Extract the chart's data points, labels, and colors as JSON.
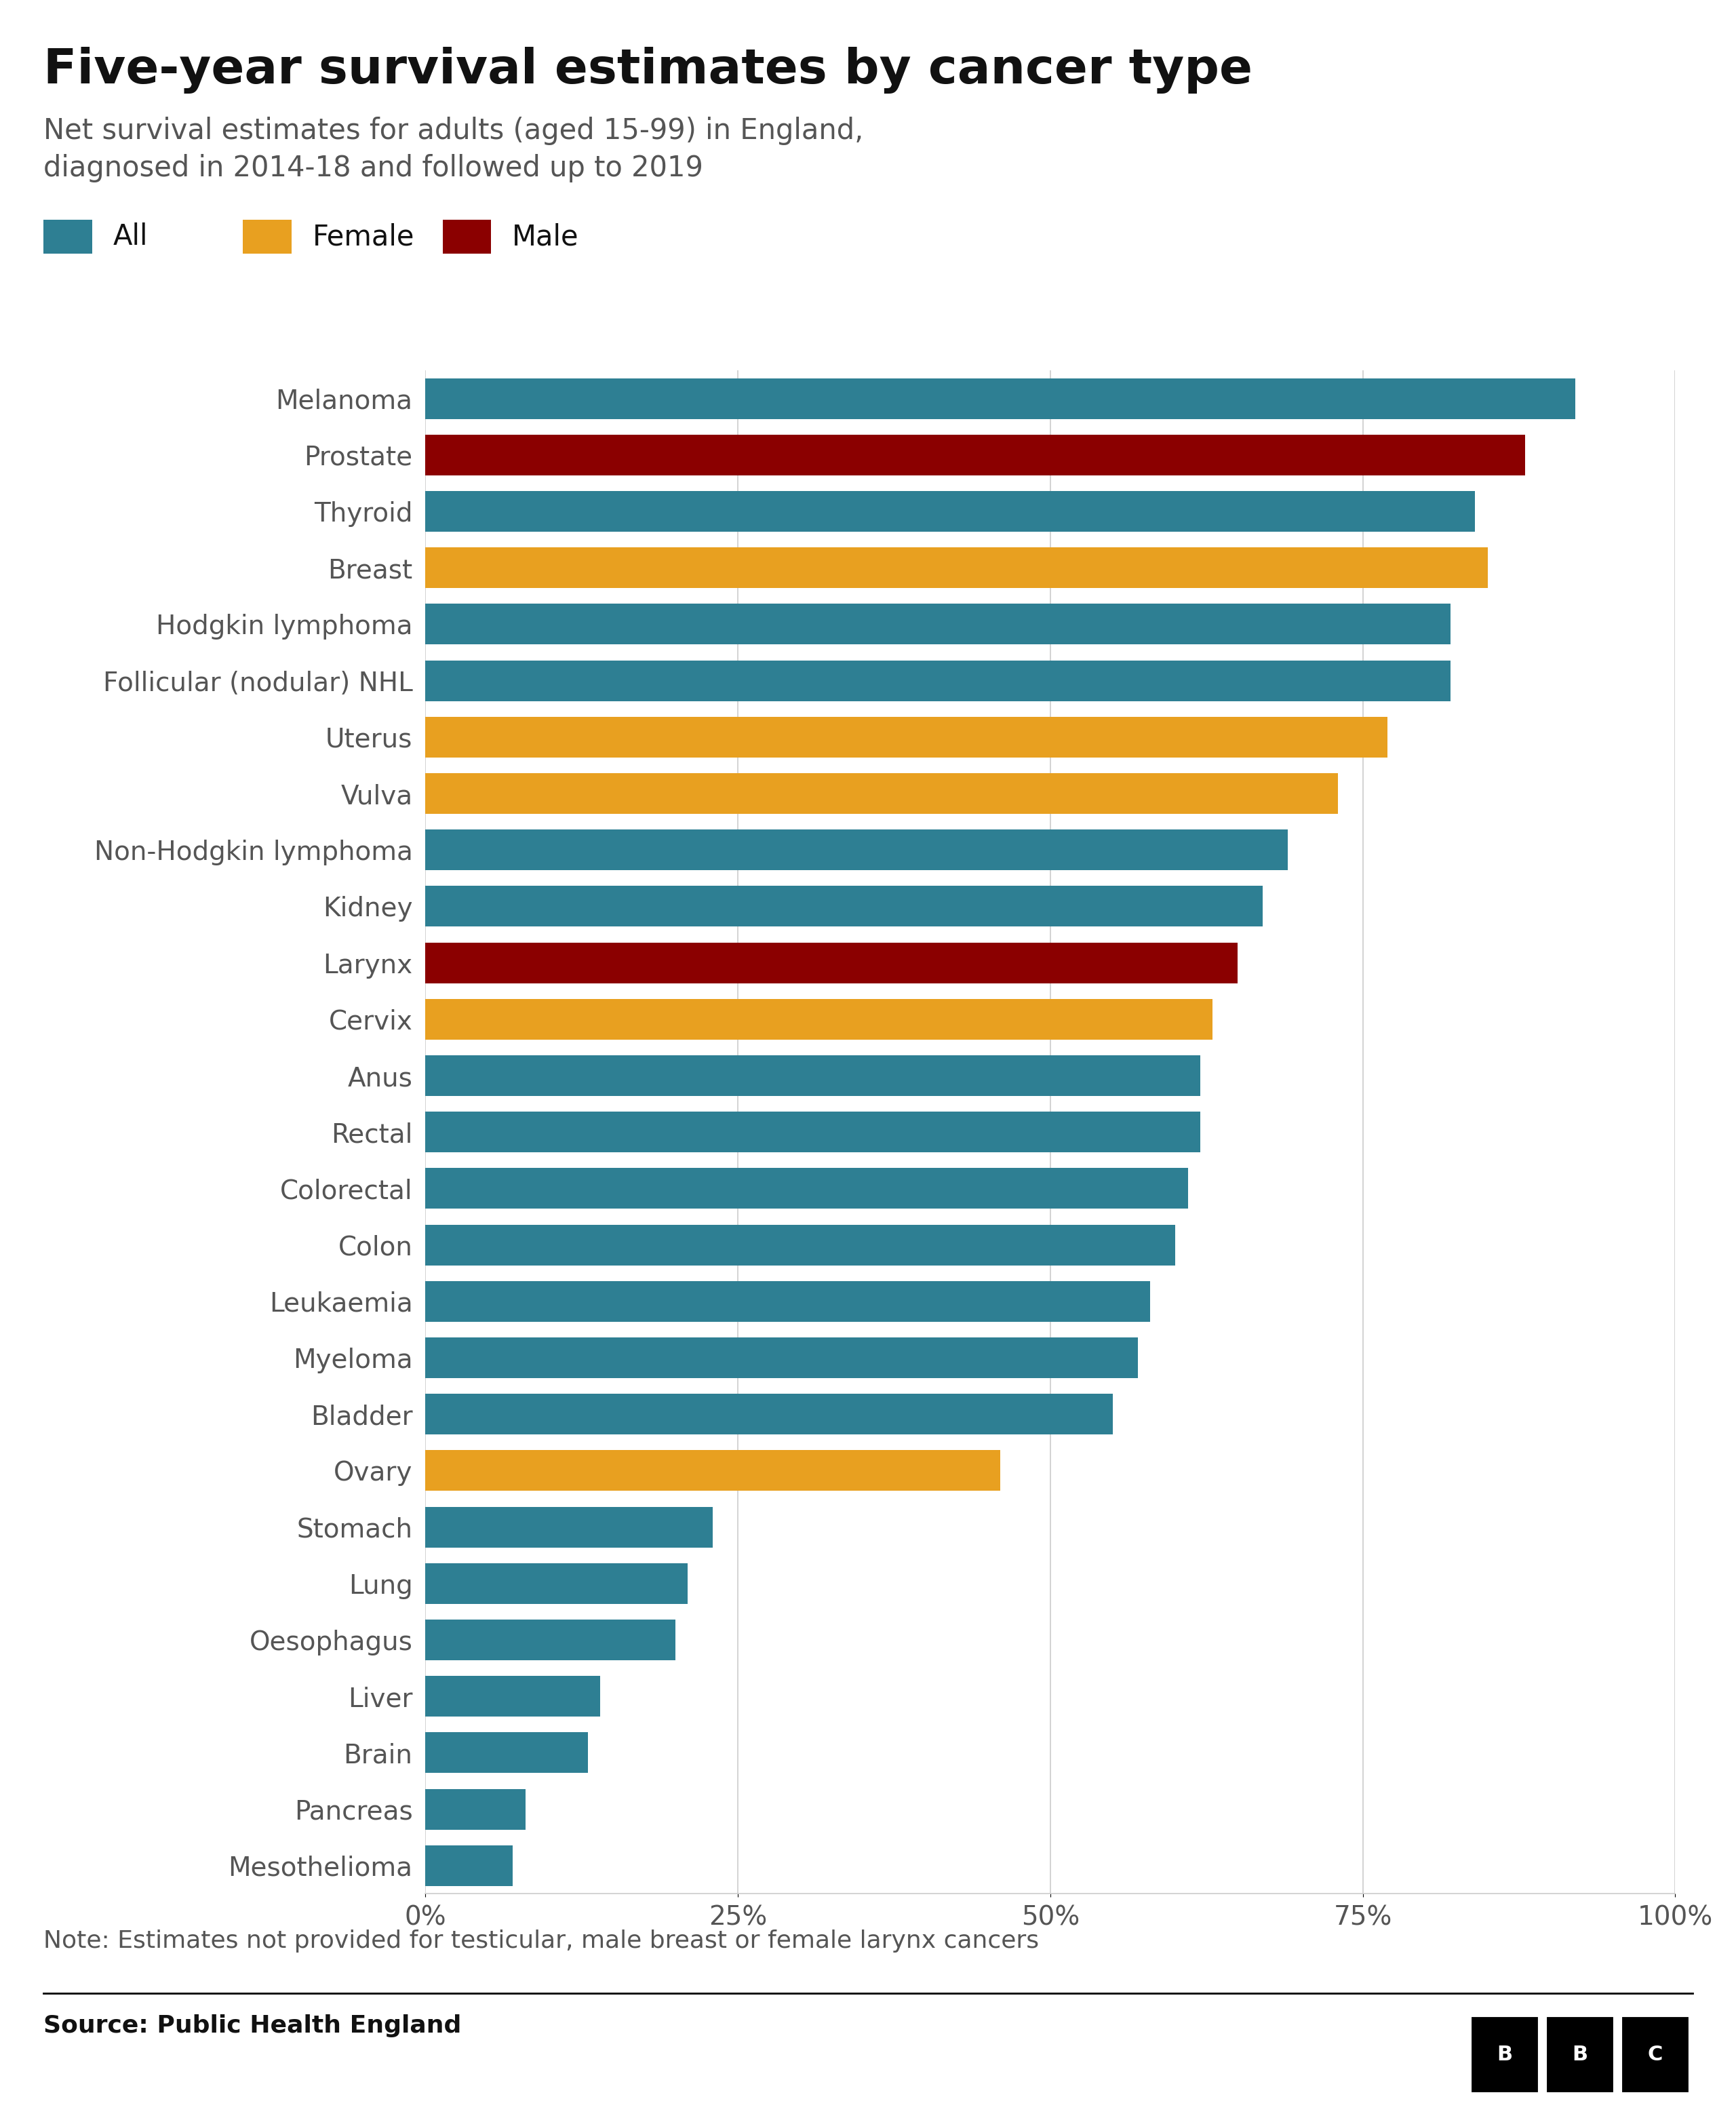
{
  "title": "Five-year survival estimates by cancer type",
  "subtitle": "Net survival estimates for adults (aged 15-99) in England,\ndiagnosed in 2014-18 and followed up to 2019",
  "note": "Note: Estimates not provided for testicular, male breast or female larynx cancers",
  "source": "Source: Public Health England",
  "legend": [
    "All",
    "Female",
    "Male"
  ],
  "colors": {
    "All": "#2e7f93",
    "Female": "#e8a020",
    "Male": "#8b0000"
  },
  "categories": [
    "Melanoma",
    "Prostate",
    "Thyroid",
    "Breast",
    "Hodgkin lymphoma",
    "Follicular (nodular) NHL",
    "Uterus",
    "Vulva",
    "Non-Hodgkin lymphoma",
    "Kidney",
    "Larynx",
    "Cervix",
    "Anus",
    "Rectal",
    "Colorectal",
    "Colon",
    "Leukaemia",
    "Myeloma",
    "Bladder",
    "Ovary",
    "Stomach",
    "Lung",
    "Oesophagus",
    "Liver",
    "Brain",
    "Pancreas",
    "Mesothelioma"
  ],
  "values": [
    92,
    88,
    84,
    85,
    82,
    82,
    77,
    73,
    69,
    67,
    65,
    63,
    62,
    62,
    61,
    60,
    58,
    57,
    55,
    46,
    23,
    21,
    20,
    14,
    13,
    8,
    7
  ],
  "bar_types": [
    "All",
    "Male",
    "All",
    "Female",
    "All",
    "All",
    "Female",
    "Female",
    "All",
    "All",
    "Male",
    "Female",
    "All",
    "All",
    "All",
    "All",
    "All",
    "All",
    "All",
    "Female",
    "All",
    "All",
    "All",
    "All",
    "All",
    "All",
    "All"
  ],
  "xlim": [
    0,
    100
  ],
  "xticks": [
    0,
    25,
    50,
    75,
    100
  ],
  "xticklabels": [
    "0%",
    "25%",
    "50%",
    "75%",
    "100%"
  ],
  "background_color": "#ffffff",
  "bar_height": 0.72,
  "title_fontsize": 52,
  "subtitle_fontsize": 30,
  "label_fontsize": 28,
  "tick_fontsize": 28,
  "note_fontsize": 26,
  "source_fontsize": 26,
  "legend_fontsize": 30,
  "grid_color": "#cccccc",
  "text_color": "#555555",
  "title_color": "#111111"
}
